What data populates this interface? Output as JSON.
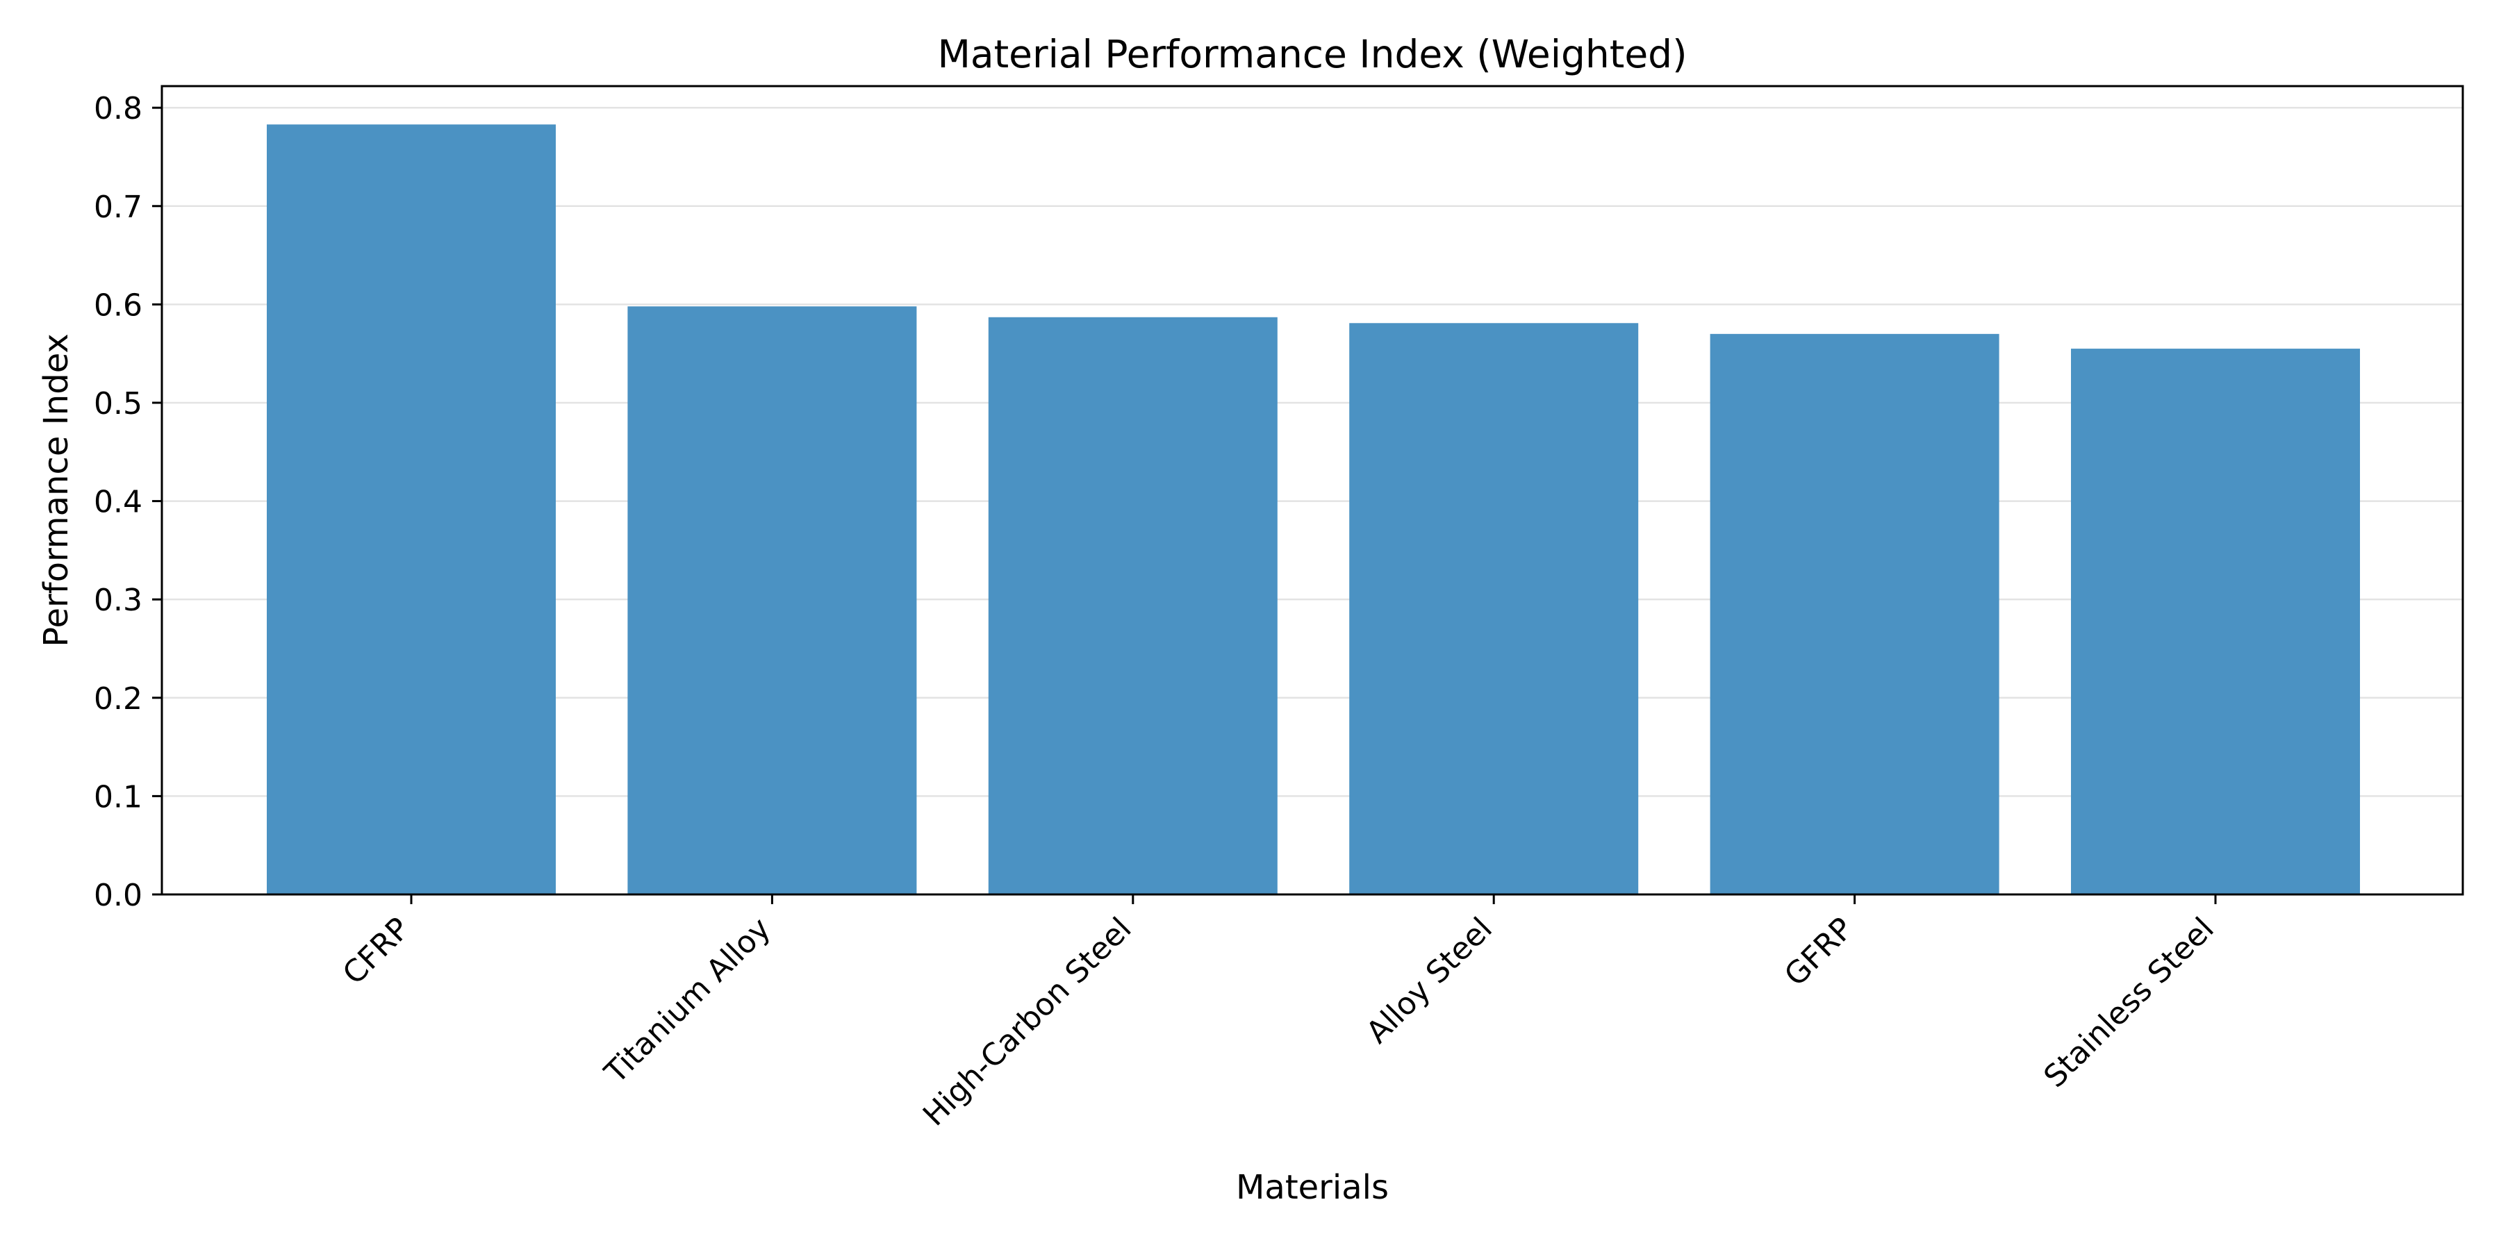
{
  "chart_data": {
    "type": "bar",
    "title": "Material Performance Index (Weighted)",
    "xlabel": "Materials",
    "ylabel": "Performance Index",
    "categories": [
      "CFRP",
      "Titanium Alloy",
      "High-Carbon Steel",
      "Alloy Steel",
      "GFRP",
      "Stainless Steel"
    ],
    "values": [
      0.783,
      0.598,
      0.587,
      0.581,
      0.57,
      0.555
    ],
    "ylim": [
      0,
      0.822
    ],
    "yticks": [
      "0.0",
      "0.1",
      "0.2",
      "0.3",
      "0.4",
      "0.5",
      "0.6",
      "0.7",
      "0.8"
    ],
    "grid": "horizontal",
    "legend": "none",
    "colors": {
      "bar": "#4b92c3",
      "grid": "#e3e3e3",
      "axis": "#000000"
    }
  }
}
